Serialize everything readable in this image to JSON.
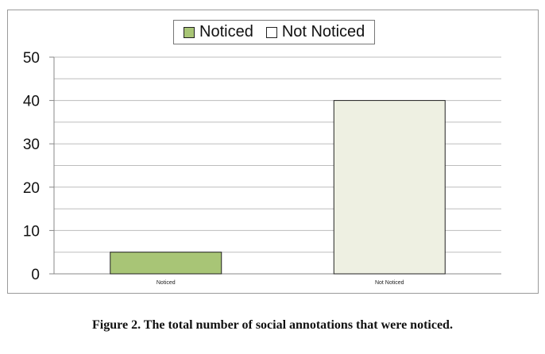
{
  "chart_data": {
    "type": "bar",
    "categories": [
      "Noticed",
      "Not Noticed"
    ],
    "values": [
      5,
      40
    ],
    "legend": [
      "Noticed",
      "Not Noticed"
    ],
    "legend_position": "top",
    "ylim": [
      0,
      50
    ],
    "yticks": [
      0,
      10,
      20,
      30,
      40,
      50
    ],
    "grid": true,
    "colors": [
      "#a8c576",
      "#eef0e2"
    ]
  },
  "caption": "Figure 2. The total number of social annotations that were noticed."
}
